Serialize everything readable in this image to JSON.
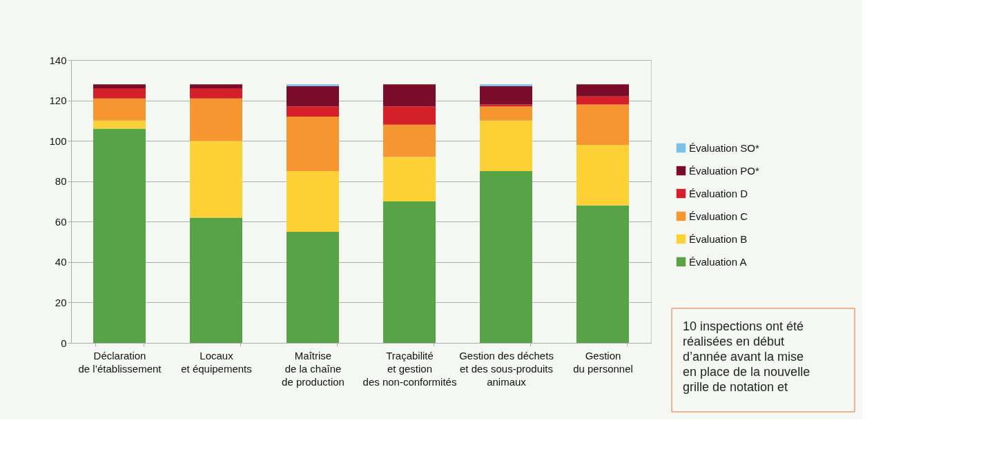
{
  "chart_data": {
    "type": "bar",
    "stacked": true,
    "categories": [
      "Déclaration\nde l’établissement",
      "Locaux\net équipements",
      "Maîtrise\nde la chaîne\nde production",
      "Traçabilité\net gestion\ndes non-conformités",
      "Gestion des déchets\net des sous-produits\nanimaux",
      "Gestion\ndu personnel"
    ],
    "series": [
      {
        "name": "Évaluation A",
        "color": "#58a345",
        "values": [
          106,
          62,
          55,
          70,
          85,
          68
        ]
      },
      {
        "name": "Évaluation B",
        "color": "#fed236",
        "values": [
          4,
          38,
          30,
          22,
          25,
          30
        ]
      },
      {
        "name": "Évaluation C",
        "color": "#f69631",
        "values": [
          11,
          21,
          27,
          16,
          7,
          20
        ]
      },
      {
        "name": "Évaluation D",
        "color": "#d42029",
        "values": [
          5,
          5,
          5,
          9,
          1,
          4
        ]
      },
      {
        "name": "Évaluation PO*",
        "color": "#7a0e2a",
        "values": [
          2,
          2,
          10,
          11,
          9,
          6
        ]
      },
      {
        "name": "Évaluation SO*",
        "color": "#7dc0ea",
        "values": [
          0,
          0,
          1,
          0,
          1,
          0
        ]
      }
    ],
    "ylim": [
      0,
      140
    ],
    "yticks": [
      0,
      20,
      40,
      60,
      80,
      100,
      120,
      140
    ],
    "grid": "y",
    "legend": "right",
    "annotations": [
      "10 inspections ont été réalisées en début d’année avant la mise en place de la nouvelle grille de notation et"
    ]
  }
}
